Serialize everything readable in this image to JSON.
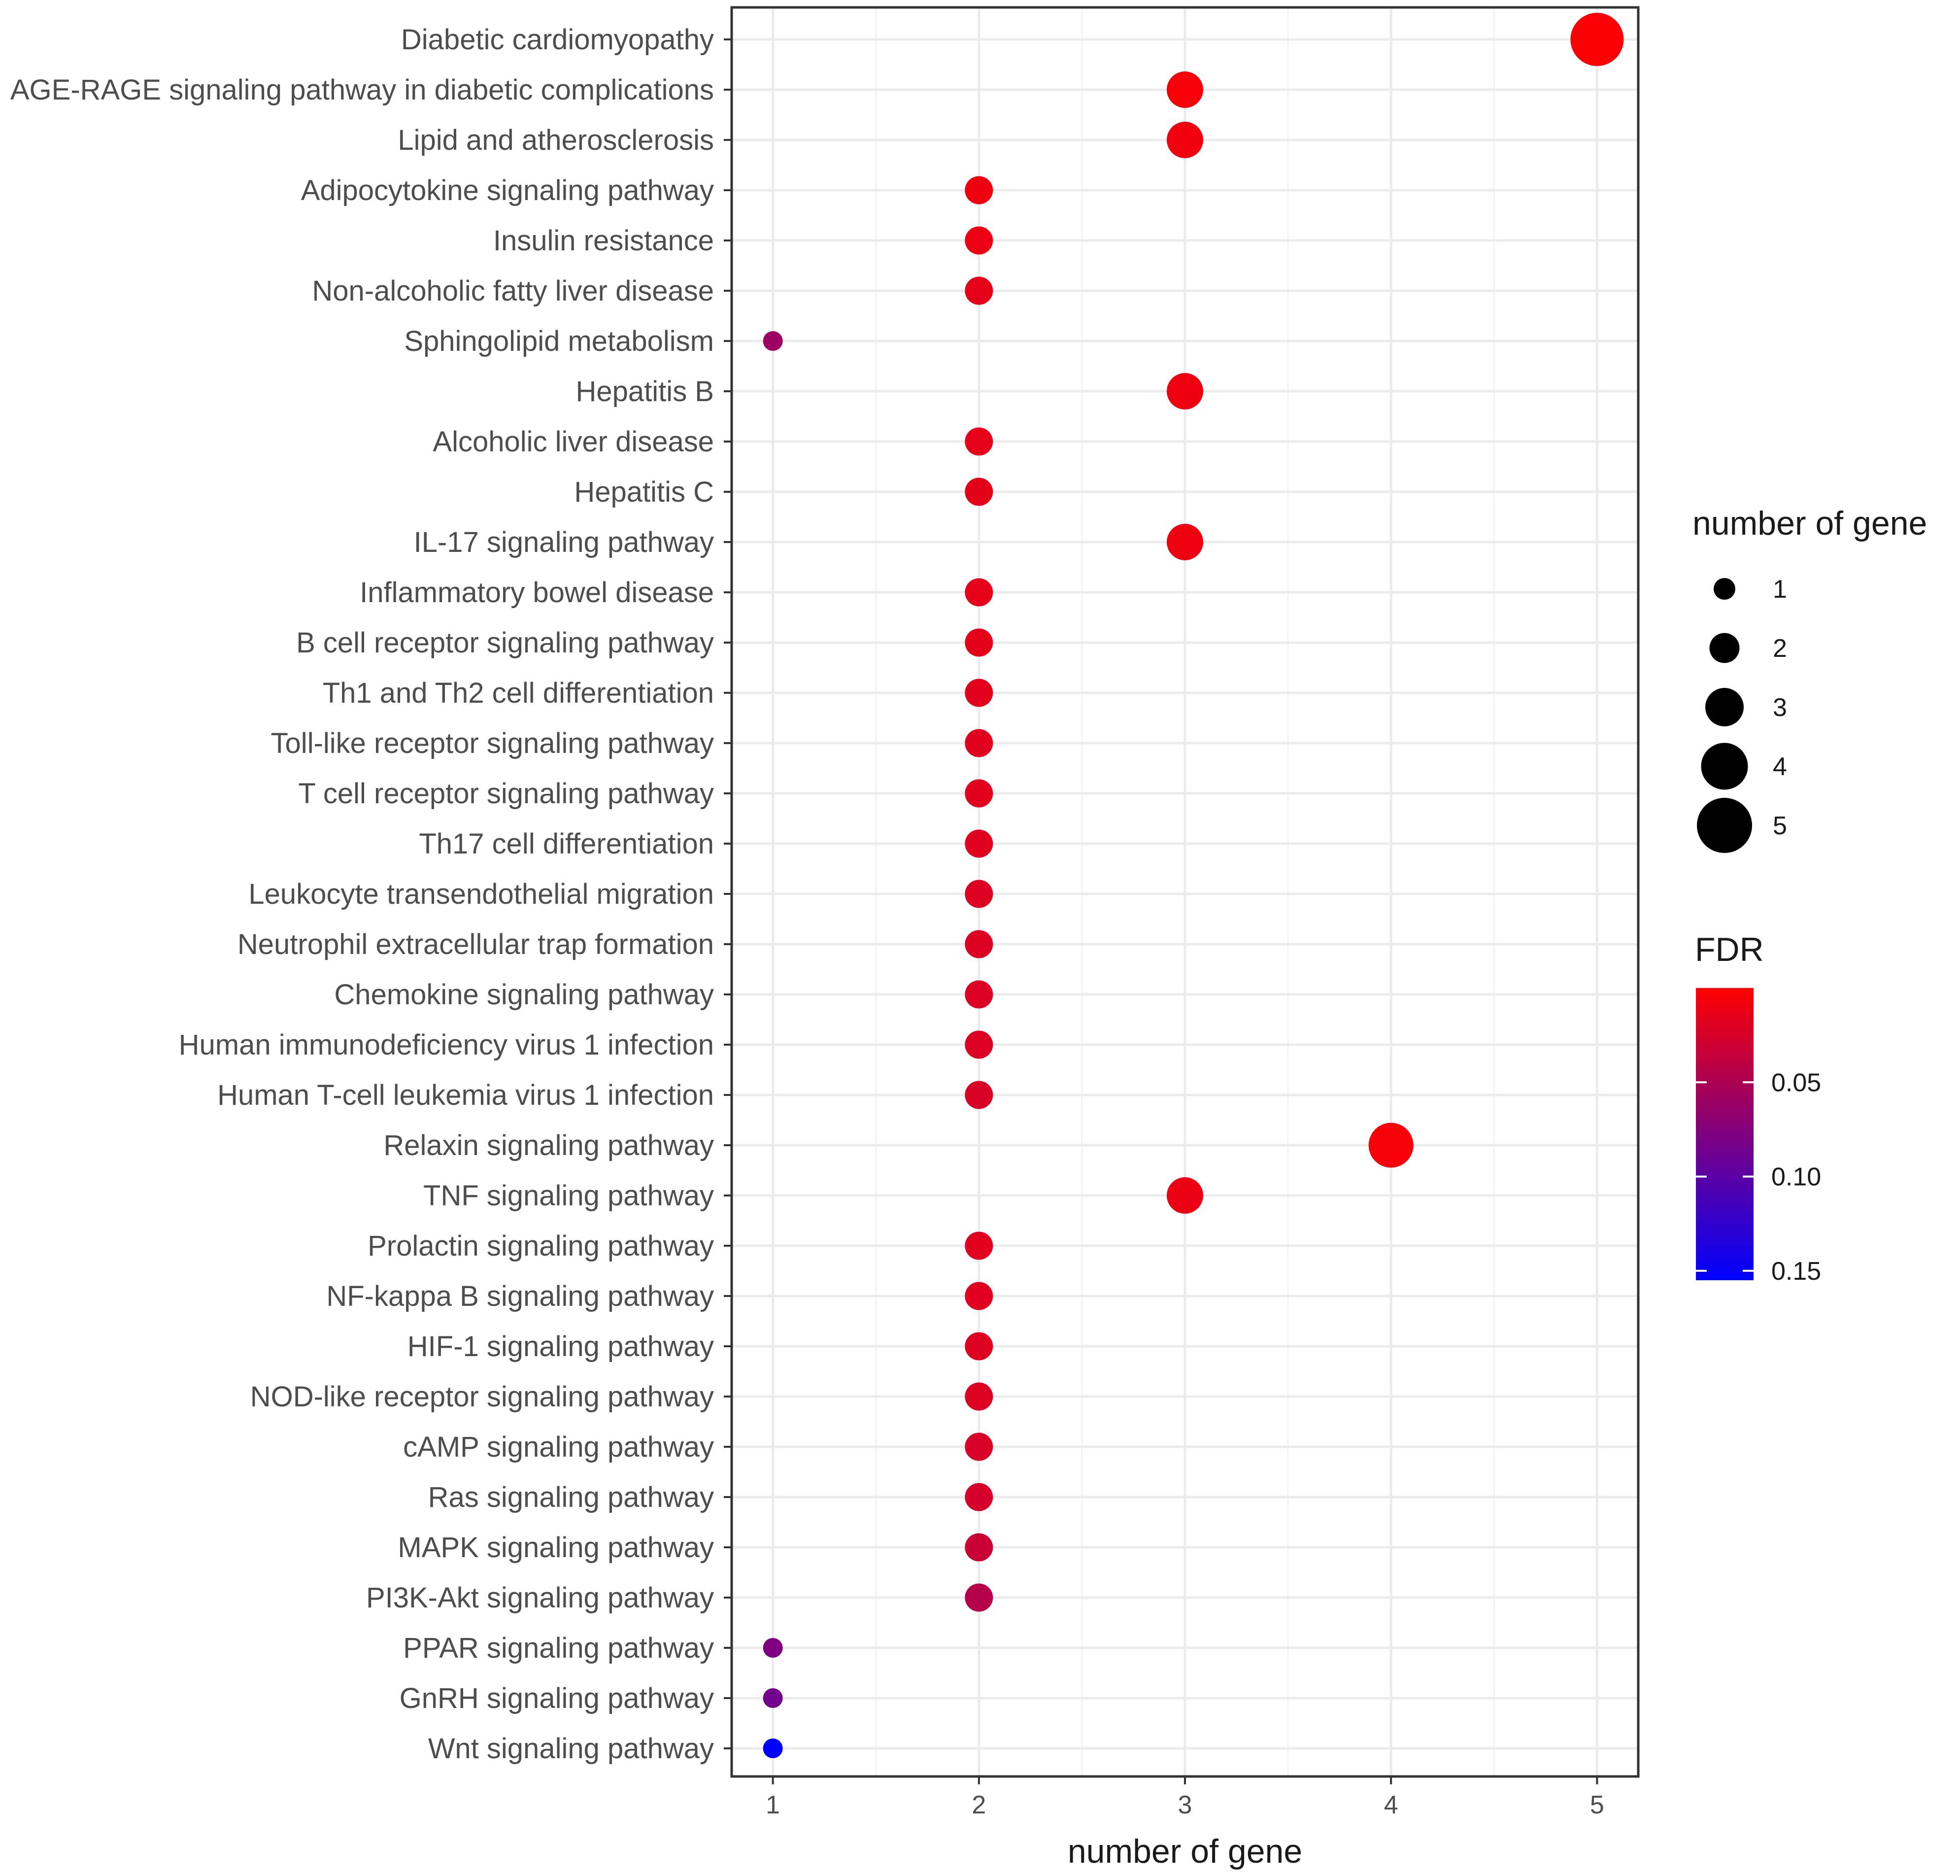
{
  "chart_data": {
    "type": "scatter",
    "subtype": "dot-plot",
    "title": "",
    "xlabel": "number of gene",
    "ylabel": "",
    "xlim": [
      0.8,
      5.2
    ],
    "x_ticks": [
      1,
      2,
      3,
      4,
      5
    ],
    "grid": true,
    "points": [
      {
        "pathway": "Diabetic cardiomyopathy",
        "genes": 5,
        "fdr": 0.003
      },
      {
        "pathway": "AGE-RAGE signaling pathway in diabetic complications",
        "genes": 3,
        "fdr": 0.005
      },
      {
        "pathway": "Lipid and atherosclerosis",
        "genes": 3,
        "fdr": 0.008
      },
      {
        "pathway": "Adipocytokine signaling pathway",
        "genes": 2,
        "fdr": 0.01
      },
      {
        "pathway": "Insulin resistance",
        "genes": 2,
        "fdr": 0.012
      },
      {
        "pathway": "Non-alcoholic fatty liver disease",
        "genes": 2,
        "fdr": 0.015
      },
      {
        "pathway": "Sphingolipid metabolism",
        "genes": 1,
        "fdr": 0.06
      },
      {
        "pathway": "Hepatitis B",
        "genes": 3,
        "fdr": 0.01
      },
      {
        "pathway": "Alcoholic liver disease",
        "genes": 2,
        "fdr": 0.015
      },
      {
        "pathway": "Hepatitis C",
        "genes": 2,
        "fdr": 0.016
      },
      {
        "pathway": "IL-17 signaling pathway",
        "genes": 3,
        "fdr": 0.01
      },
      {
        "pathway": "Inflammatory bowel disease",
        "genes": 2,
        "fdr": 0.015
      },
      {
        "pathway": "B cell receptor signaling pathway",
        "genes": 2,
        "fdr": 0.016
      },
      {
        "pathway": "Th1 and Th2 cell differentiation",
        "genes": 2,
        "fdr": 0.017
      },
      {
        "pathway": "Toll-like receptor signaling pathway",
        "genes": 2,
        "fdr": 0.018
      },
      {
        "pathway": "T cell receptor signaling pathway",
        "genes": 2,
        "fdr": 0.018
      },
      {
        "pathway": "Th17 cell differentiation",
        "genes": 2,
        "fdr": 0.019
      },
      {
        "pathway": "Leukocyte transendothelial migration",
        "genes": 2,
        "fdr": 0.02
      },
      {
        "pathway": "Neutrophil extracellular trap formation",
        "genes": 2,
        "fdr": 0.021
      },
      {
        "pathway": "Chemokine signaling pathway",
        "genes": 2,
        "fdr": 0.022
      },
      {
        "pathway": "Human immunodeficiency virus 1 infection",
        "genes": 2,
        "fdr": 0.022
      },
      {
        "pathway": "Human T-cell leukemia virus 1 infection",
        "genes": 2,
        "fdr": 0.023
      },
      {
        "pathway": "Relaxin signaling pathway",
        "genes": 4,
        "fdr": 0.005
      },
      {
        "pathway": "TNF signaling pathway",
        "genes": 3,
        "fdr": 0.012
      },
      {
        "pathway": "Prolactin signaling pathway",
        "genes": 2,
        "fdr": 0.018
      },
      {
        "pathway": "NF-kappa B signaling pathway",
        "genes": 2,
        "fdr": 0.019
      },
      {
        "pathway": "HIF-1 signaling pathway",
        "genes": 2,
        "fdr": 0.02
      },
      {
        "pathway": "NOD-like receptor signaling pathway",
        "genes": 2,
        "fdr": 0.021
      },
      {
        "pathway": "cAMP signaling pathway",
        "genes": 2,
        "fdr": 0.024
      },
      {
        "pathway": "Ras signaling pathway",
        "genes": 2,
        "fdr": 0.026
      },
      {
        "pathway": "MAPK signaling pathway",
        "genes": 2,
        "fdr": 0.032
      },
      {
        "pathway": "PI3K-Akt signaling pathway",
        "genes": 2,
        "fdr": 0.045
      },
      {
        "pathway": "PPAR signaling pathway",
        "genes": 1,
        "fdr": 0.078
      },
      {
        "pathway": "GnRH signaling pathway",
        "genes": 1,
        "fdr": 0.085
      },
      {
        "pathway": "Wnt signaling pathway",
        "genes": 1,
        "fdr": 0.155
      }
    ],
    "size_legend": {
      "title": "number of gene",
      "values": [
        1,
        2,
        3,
        4,
        5
      ],
      "labels": [
        "1",
        "2",
        "3",
        "4",
        "5"
      ]
    },
    "color_legend": {
      "title": "FDR",
      "range": [
        0.0,
        0.155
      ],
      "breaks": [
        0.05,
        0.1,
        0.15
      ],
      "labels": [
        "0.05",
        "0.10",
        "0.15"
      ],
      "low_color": "#ff0000",
      "high_color": "#0000ff"
    }
  }
}
